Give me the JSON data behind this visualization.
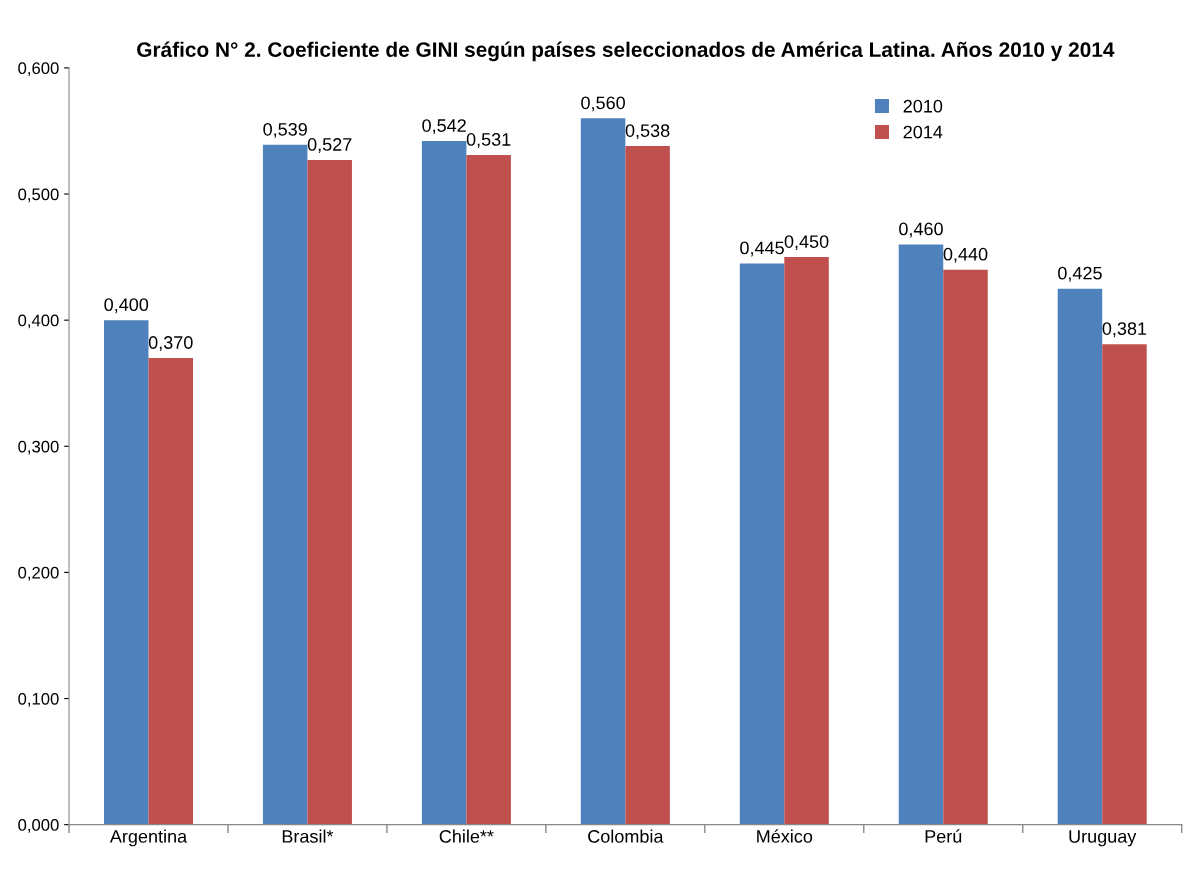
{
  "chart_data": {
    "type": "bar",
    "title": "Gráfico N° 2. Coeficiente de GINI según países seleccionados de América Latina. Años 2010 y 2014",
    "categories": [
      "Argentina",
      "Brasil*",
      "Chile**",
      "Colombia",
      "México",
      "Perú",
      "Uruguay"
    ],
    "series": [
      {
        "name": "2010",
        "color": "#4f81bd",
        "values": [
          0.4,
          0.539,
          0.542,
          0.56,
          0.445,
          0.46,
          0.425
        ],
        "value_labels": [
          "0,400",
          "0,539",
          "0,542",
          "0,560",
          "0,445",
          "0,460",
          "0,425"
        ]
      },
      {
        "name": "2014",
        "color": "#c0504d",
        "values": [
          0.37,
          0.527,
          0.531,
          0.538,
          0.45,
          0.44,
          0.381
        ],
        "value_labels": [
          "0,370",
          "0,527",
          "0,531",
          "0,538",
          "0,450",
          "0,440",
          "0,381"
        ]
      }
    ],
    "ylim": [
      0,
      0.6
    ],
    "yticks": [
      {
        "value": 0,
        "label": "0,000"
      },
      {
        "value": 0.1,
        "label": "0,100"
      },
      {
        "value": 0.2,
        "label": "0,200"
      },
      {
        "value": 0.3,
        "label": "0,300"
      },
      {
        "value": 0.4,
        "label": "0,400"
      },
      {
        "value": 0.5,
        "label": "0,500"
      },
      {
        "value": 0.6,
        "label": "0,600"
      }
    ],
    "grid": false,
    "legend": "top right"
  }
}
